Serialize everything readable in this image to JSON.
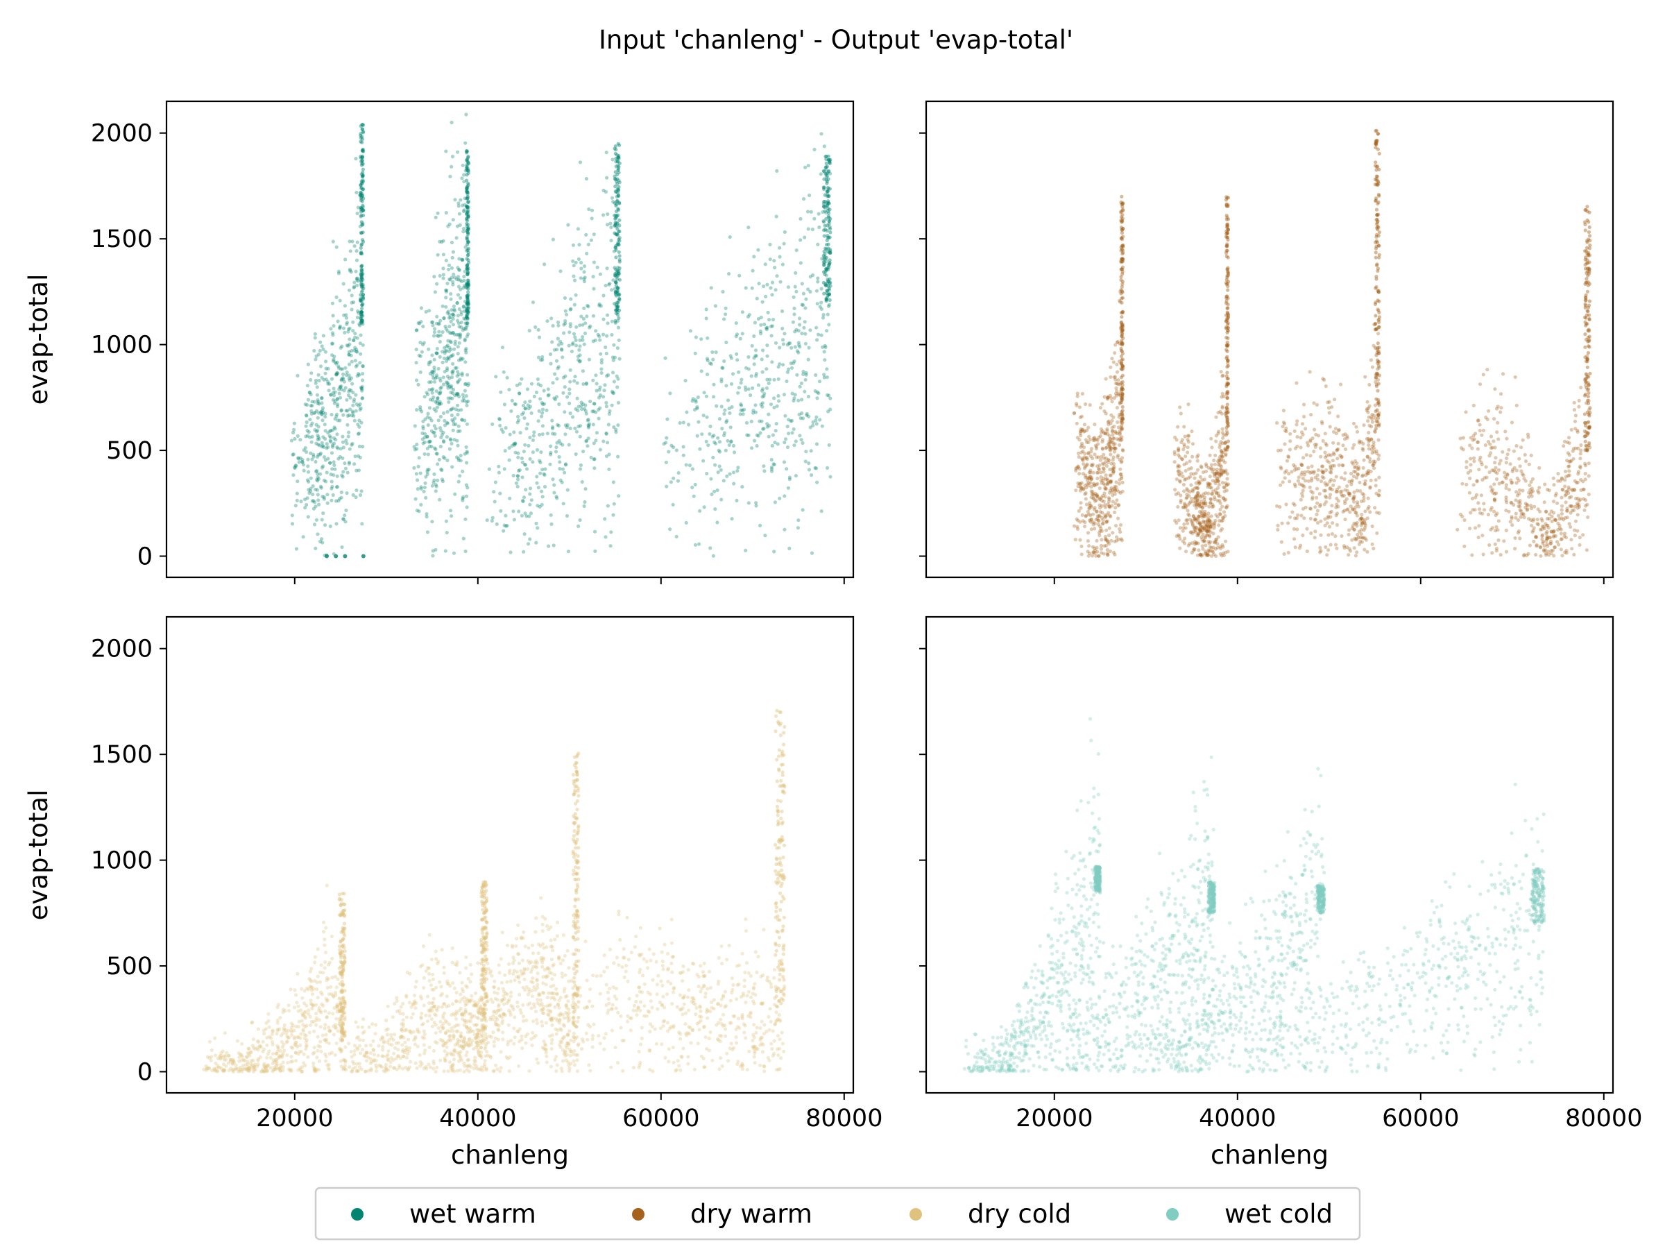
{
  "title": "Input 'chanleng' - Output 'evap-total'",
  "legend": {
    "placement": "bottom-center",
    "entries": [
      {
        "label": "wet warm",
        "color": "#018571"
      },
      {
        "label": "dry warm",
        "color": "#A6611A"
      },
      {
        "label": "dry cold",
        "color": "#DFC27D"
      },
      {
        "label": "wet cold",
        "color": "#80CDC1"
      }
    ]
  },
  "chart_data": [
    {
      "type": "scatter",
      "panel": "top-left",
      "series": "wet warm",
      "color": "#018571",
      "xlabel": "",
      "ylabel": "evap-total",
      "xlim": [
        6000,
        81000
      ],
      "ylim": [
        -100,
        2150
      ],
      "xticks": [
        20000,
        40000,
        60000,
        80000
      ],
      "xticklabels_shown": false,
      "yticks": [
        0,
        500,
        1000,
        1500,
        2000
      ],
      "yticklabels_shown": true,
      "clusters": [
        {
          "x_range": [
            19500,
            27500
          ],
          "y_trend": [
            [
              19500,
              350
            ],
            [
              22000,
              500
            ],
            [
              25500,
              800
            ],
            [
              27500,
              1100
            ]
          ],
          "x_max": 27500,
          "y_max_at_edge": 2050
        },
        {
          "x_range": [
            33000,
            39000
          ],
          "y_trend": [
            [
              33000,
              600
            ],
            [
              36000,
              850
            ],
            [
              39000,
              1100
            ]
          ],
          "x_max": 39000,
          "y_max_at_edge": 1920
        },
        {
          "x_range": [
            41000,
            55500
          ],
          "y_trend": [
            [
              41000,
              420
            ],
            [
              46000,
              520
            ],
            [
              50000,
              800
            ],
            [
              55500,
              1100
            ]
          ],
          "x_max": 55500,
          "y_max_at_edge": 1950
        },
        {
          "x_range": [
            60000,
            78500
          ],
          "y_trend": [
            [
              60000,
              420
            ],
            [
              68000,
              750
            ],
            [
              75000,
              900
            ],
            [
              78500,
              1200
            ]
          ],
          "x_max": 78500,
          "y_max_at_edge": 1900
        }
      ],
      "zero_points_x": [
        23500,
        24500,
        25500,
        27500
      ]
    },
    {
      "type": "scatter",
      "panel": "top-right",
      "series": "dry warm",
      "color": "#A6611A",
      "xlabel": "",
      "ylabel": "",
      "xlim": [
        6000,
        81000
      ],
      "ylim": [
        -100,
        2150
      ],
      "xticks": [
        20000,
        40000,
        60000,
        80000
      ],
      "xticklabels_shown": false,
      "yticks": [
        0,
        500,
        1000,
        1500,
        2000
      ],
      "yticklabels_shown": false,
      "clusters": [
        {
          "x_range": [
            22000,
            27500
          ],
          "y_trend": [
            [
              22000,
              400
            ],
            [
              25000,
              300
            ],
            [
              27500,
              600
            ]
          ],
          "x_max": 27500,
          "y_max_at_edge": 1700
        },
        {
          "x_range": [
            33000,
            39000
          ],
          "y_trend": [
            [
              33000,
              400
            ],
            [
              36500,
              150
            ],
            [
              39000,
              500
            ]
          ],
          "x_max": 39000,
          "y_max_at_edge": 1700
        },
        {
          "x_range": [
            44000,
            55500
          ],
          "y_trend": [
            [
              44000,
              350
            ],
            [
              50000,
              400
            ],
            [
              53000,
              250
            ],
            [
              55500,
              600
            ]
          ],
          "x_max": 55500,
          "y_max_at_edge": 2020
        },
        {
          "x_range": [
            64000,
            78500
          ],
          "y_trend": [
            [
              64000,
              400
            ],
            [
              70000,
              350
            ],
            [
              74000,
              100
            ],
            [
              78500,
              500
            ]
          ],
          "x_max": 78500,
          "y_max_at_edge": 1660
        }
      ]
    },
    {
      "type": "scatter",
      "panel": "bottom-left",
      "series": "dry cold",
      "color": "#DFC27D",
      "xlabel": "chanleng",
      "ylabel": "evap-total",
      "xlim": [
        6000,
        81000
      ],
      "ylim": [
        -100,
        2150
      ],
      "xticks": [
        20000,
        40000,
        60000,
        80000
      ],
      "xticklabels_shown": true,
      "yticks": [
        0,
        500,
        1000,
        1500,
        2000
      ],
      "yticklabels_shown": true,
      "clusters": [
        {
          "x_range": [
            10000,
            25500
          ],
          "y_trend": [
            [
              10000,
              20
            ],
            [
              15000,
              40
            ],
            [
              20000,
              150
            ],
            [
              23500,
              350
            ],
            [
              25500,
              150
            ]
          ],
          "x_max": 25500,
          "y_max_at_edge": 850
        },
        {
          "x_range": [
            25000,
            41000
          ],
          "y_trend": [
            [
              25000,
              50
            ],
            [
              30000,
              100
            ],
            [
              35000,
              300
            ],
            [
              41000,
              200
            ]
          ],
          "x_max": 41000,
          "y_max_at_edge": 900
        },
        {
          "x_range": [
            36000,
            51000
          ],
          "y_trend": [
            [
              36000,
              80
            ],
            [
              42000,
              250
            ],
            [
              47000,
              400
            ],
            [
              51000,
              200
            ]
          ],
          "x_max": 51000,
          "y_max_at_edge": 1520
        },
        {
          "x_range": [
            48000,
            73500
          ],
          "y_trend": [
            [
              48000,
              120
            ],
            [
              55000,
              350
            ],
            [
              62000,
              300
            ],
            [
              68000,
              250
            ],
            [
              73500,
              300
            ]
          ],
          "x_max": 73500,
          "y_max_at_edge": 1710
        }
      ]
    },
    {
      "type": "scatter",
      "panel": "bottom-right",
      "series": "wet cold",
      "color": "#80CDC1",
      "xlabel": "chanleng",
      "ylabel": "",
      "xlim": [
        6000,
        81000
      ],
      "ylim": [
        -100,
        2150
      ],
      "xticks": [
        20000,
        40000,
        60000,
        80000
      ],
      "xticklabels_shown": true,
      "yticks": [
        0,
        500,
        1000,
        1500,
        2000
      ],
      "yticklabels_shown": false,
      "clusters": [
        {
          "x_range": [
            10000,
            25000
          ],
          "y_trend": [
            [
              10000,
              20
            ],
            [
              15000,
              50
            ],
            [
              18000,
              250
            ],
            [
              22000,
              550
            ],
            [
              25000,
              850
            ]
          ],
          "x_max": 25000,
          "y_max_at_edge": 970
        },
        {
          "x_range": [
            20000,
            37500
          ],
          "y_trend": [
            [
              20000,
              100
            ],
            [
              27000,
              250
            ],
            [
              33000,
              500
            ],
            [
              37500,
              750
            ]
          ],
          "x_max": 37500,
          "y_max_at_edge": 900
        },
        {
          "x_range": [
            30000,
            49500
          ],
          "y_trend": [
            [
              30000,
              60
            ],
            [
              37000,
              200
            ],
            [
              43000,
              450
            ],
            [
              49500,
              750
            ]
          ],
          "x_max": 49500,
          "y_max_at_edge": 880
        },
        {
          "x_range": [
            40000,
            73500
          ],
          "y_trend": [
            [
              40000,
              80
            ],
            [
              50000,
              200
            ],
            [
              58000,
              350
            ],
            [
              66000,
              500
            ],
            [
              73500,
              700
            ]
          ],
          "x_max": 73500,
          "y_max_at_edge": 960
        }
      ]
    }
  ]
}
